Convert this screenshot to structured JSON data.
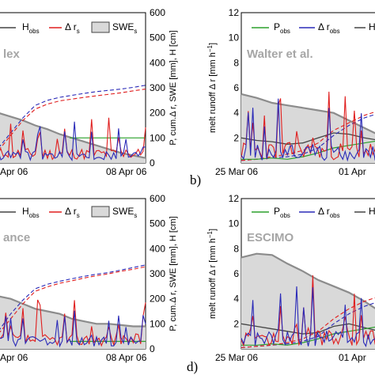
{
  "colors": {
    "obs_h": "#444444",
    "obs_h_fill": "#d9d9d9",
    "sim_h": "#8c8c8c",
    "runoff_obs": "#2a2ab8",
    "runoff_sim": "#e01e1e",
    "precip": "#2ca02c"
  },
  "legend": {
    "h_obs_main": "H",
    "h_obs_sub": "obs",
    "dr_main": "Δ r",
    "dr_sub": "s",
    "swe_main": "SWE",
    "swe_sub": "s",
    "p_main": "P",
    "p_sub": "obs",
    "dro_main": "Δ r",
    "dro_sub": "obs",
    "h_main": "H"
  },
  "panels": {
    "b": "b)",
    "d": "d)"
  },
  "models": {
    "top_left": "lex",
    "top_right": "Walter et al.",
    "bottom_left": "ance",
    "bottom_right": "ESCIMO"
  },
  "axes": {
    "right_ylabel": "P, cum.Δ r, SWE [mm], H [cm]",
    "left_ylabel_main": "melt runoff Δ r [mm h",
    "left_ylabel_exp": "−1",
    "left_ylabel_end": "]",
    "left_xticks": [
      "Apr 06",
      "08 Apr 06"
    ],
    "right_xticks": [
      "25 Mar 06",
      "01 Apr"
    ],
    "right_yticks": [
      "0",
      "100",
      "200",
      "300",
      "400",
      "500",
      "600"
    ],
    "left_yticks": [
      "2",
      "4",
      "6",
      "8",
      "10",
      "12"
    ]
  },
  "chart_data": [
    {
      "type": "line",
      "panel": "top-left",
      "model": "lex",
      "ylim": [
        0,
        600
      ],
      "series": [
        {
          "name": "H obs",
          "values": [
            200,
            185,
            170,
            150,
            135,
            115,
            100,
            85,
            70,
            55,
            40,
            30,
            20
          ]
        },
        {
          "name": "cum. Δ r obs",
          "values": [
            60,
            120,
            180,
            230,
            250,
            262,
            270,
            278,
            285,
            290,
            295,
            302,
            310
          ]
        },
        {
          "name": "cum. Δ r s",
          "values": [
            50,
            110,
            170,
            215,
            235,
            248,
            255,
            262,
            268,
            274,
            280,
            288,
            295
          ]
        }
      ]
    },
    {
      "type": "line",
      "panel": "top-right",
      "model": "Walter et al.",
      "ylim": [
        0,
        12
      ],
      "series": [
        {
          "name": "SWE s",
          "values": [
            5.5,
            5.2,
            4.8,
            4.6,
            4.4,
            4.2,
            4.0,
            3.4,
            2.8,
            2.2
          ]
        },
        {
          "name": "H obs",
          "values": [
            2.0,
            1.8,
            1.7,
            1.5,
            1.6,
            2.0,
            2.4,
            2.3,
            2.0,
            1.8
          ]
        },
        {
          "name": "cum. Δ r obs",
          "values": [
            0.2,
            0.3,
            0.4,
            0.5,
            0.7,
            1.2,
            2.2,
            3.0,
            3.6,
            4.0
          ]
        },
        {
          "name": "cum. Δ r s",
          "values": [
            0.2,
            0.3,
            0.5,
            0.7,
            1.0,
            1.6,
            2.6,
            3.2,
            3.8,
            4.2
          ]
        }
      ]
    },
    {
      "type": "line",
      "panel": "bottom-left",
      "model": "ance",
      "ylim": [
        0,
        600
      ],
      "series": [
        {
          "name": "H obs",
          "values": [
            210,
            200,
            180,
            160,
            150,
            140,
            120,
            110,
            100,
            100,
            95,
            90,
            90
          ]
        },
        {
          "name": "cum. Δ r obs",
          "values": [
            70,
            140,
            195,
            240,
            258,
            270,
            280,
            290,
            298,
            305,
            315,
            325,
            335
          ]
        },
        {
          "name": "cum. Δ r s",
          "values": [
            60,
            120,
            180,
            230,
            248,
            262,
            272,
            283,
            292,
            300,
            310,
            318,
            328
          ]
        }
      ]
    },
    {
      "type": "line",
      "panel": "bottom-right",
      "model": "ESCIMO",
      "ylim": [
        0,
        12
      ],
      "series": [
        {
          "name": "SWE s",
          "values": [
            7.3,
            7.6,
            7.5,
            6.8,
            6.2,
            5.5,
            5.0,
            4.5,
            3.8,
            3.0
          ]
        },
        {
          "name": "H obs",
          "values": [
            2.0,
            1.8,
            1.6,
            1.4,
            1.2,
            1.3,
            1.8,
            2.0,
            1.7,
            1.4
          ]
        },
        {
          "name": "cum. Δ r obs",
          "values": [
            0.1,
            0.2,
            0.3,
            0.4,
            0.6,
            1.0,
            2.0,
            2.8,
            3.4,
            3.8
          ]
        },
        {
          "name": "cum. Δ r s",
          "values": [
            0.1,
            0.2,
            0.3,
            0.5,
            0.8,
            1.4,
            2.4,
            3.2,
            3.8,
            4.2
          ]
        }
      ]
    }
  ]
}
